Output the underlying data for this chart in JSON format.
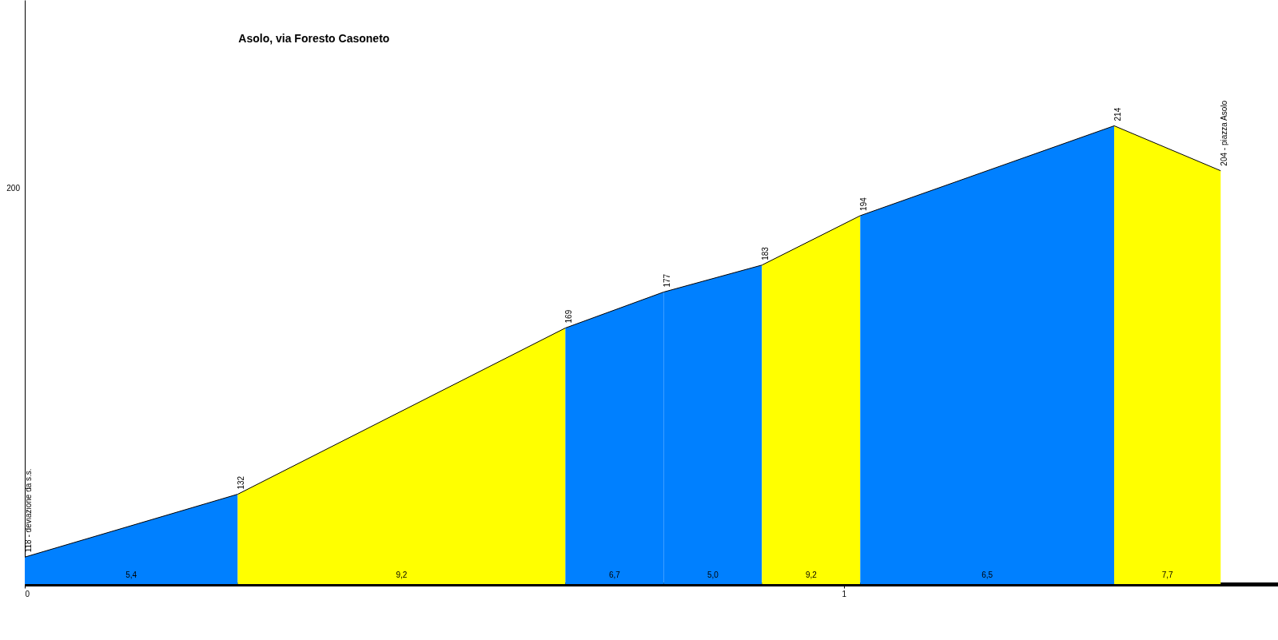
{
  "chart_data": {
    "type": "area",
    "title": "Asolo, via Foresto Casoneto",
    "xlim": [
      0,
      1.53
    ],
    "xticks": [
      0,
      1
    ],
    "ylim": [
      112,
      242
    ],
    "grid": false,
    "series": [
      {
        "color": "#0080ff",
        "x": [
          0,
          0.26
        ],
        "values": [
          118,
          132
        ],
        "value_labels": [
          "118 - deviazione da s.s.",
          "132"
        ]
      },
      {
        "color": "#ffff00",
        "x": [
          0.26,
          0.66
        ],
        "values": [
          132,
          169
        ],
        "value_labels": [
          null,
          "169"
        ]
      },
      {
        "color": "#0080ff",
        "x": [
          0.66,
          0.78
        ],
        "values": [
          169,
          177
        ],
        "value_labels": [
          null,
          "177"
        ]
      },
      {
        "color": "#0080ff",
        "x": [
          0.78,
          0.9
        ],
        "values": [
          177,
          183
        ],
        "value_labels": [
          null,
          "183"
        ]
      },
      {
        "color": "#ffff00",
        "x": [
          0.9,
          1.02
        ],
        "values": [
          183,
          194
        ],
        "value_labels": [
          null,
          "194"
        ]
      },
      {
        "color": "#0080ff",
        "x": [
          1.02,
          1.33
        ],
        "values": [
          194,
          214
        ],
        "value_labels": [
          null,
          "214"
        ]
      },
      {
        "color": "#ffff00",
        "x": [
          1.33,
          1.46
        ],
        "values": [
          214,
          204
        ],
        "value_labels": [
          null,
          "204 - piazza Asolo"
        ]
      }
    ],
    "annotations": [
      "5,4",
      "9,2",
      "6,7",
      "5,0",
      "9,2",
      "6,5",
      "7,7",
      "200"
    ]
  }
}
